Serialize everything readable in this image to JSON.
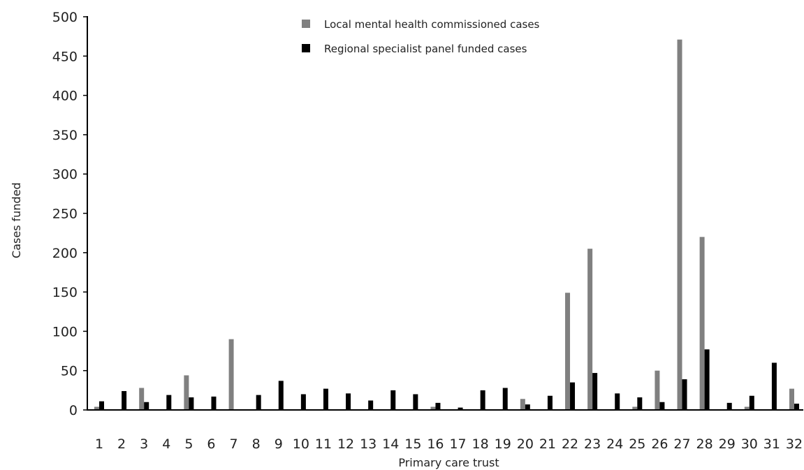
{
  "chart_data": {
    "type": "bar",
    "xlabel": "Primary care trust",
    "ylabel": "Cases funded",
    "ylim": [
      0,
      500
    ],
    "yticks": [
      0,
      50,
      100,
      150,
      200,
      250,
      300,
      350,
      400,
      450,
      500
    ],
    "grid": false,
    "legend_position": "top-center",
    "categories": [
      "1",
      "2",
      "3",
      "4",
      "5",
      "6",
      "7",
      "8",
      "9",
      "10",
      "11",
      "12",
      "13",
      "14",
      "15",
      "16",
      "17",
      "18",
      "19",
      "20",
      "21",
      "22",
      "23",
      "24",
      "25",
      "26",
      "27",
      "28",
      "29",
      "30",
      "31",
      "32"
    ],
    "series": [
      {
        "name": "Local mental health commissioned cases",
        "color": "#808080",
        "values": [
          4,
          0,
          28,
          0,
          44,
          0,
          90,
          0,
          0,
          0,
          0,
          0,
          0,
          0,
          0,
          4,
          0,
          0,
          0,
          14,
          0,
          149,
          205,
          0,
          4,
          50,
          471,
          220,
          0,
          4,
          0,
          27
        ]
      },
      {
        "name": "Regional specialist panel funded cases",
        "color": "#000000",
        "values": [
          11,
          24,
          10,
          19,
          16,
          17,
          0,
          19,
          37,
          20,
          27,
          21,
          12,
          25,
          20,
          9,
          3,
          25,
          28,
          7,
          18,
          35,
          47,
          21,
          16,
          10,
          39,
          77,
          9,
          18,
          60,
          8
        ]
      }
    ]
  }
}
